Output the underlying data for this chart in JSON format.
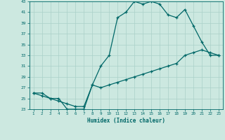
{
  "xlabel": "Humidex (Indice chaleur)",
  "ylabel": "",
  "bg_color": "#cce8e0",
  "grid_color": "#aad0c8",
  "line_color": "#006868",
  "xlim": [
    0.5,
    23.5
  ],
  "ylim": [
    23,
    43
  ],
  "xticks": [
    1,
    2,
    3,
    4,
    5,
    6,
    7,
    8,
    9,
    10,
    11,
    12,
    13,
    14,
    15,
    16,
    17,
    18,
    19,
    20,
    21,
    22,
    23
  ],
  "yticks": [
    23,
    25,
    27,
    29,
    31,
    33,
    35,
    37,
    39,
    41,
    43
  ],
  "line1_x": [
    1,
    2,
    3,
    4,
    5,
    6,
    7,
    8,
    9,
    10,
    11,
    12,
    13,
    14,
    15,
    16,
    17,
    18,
    19,
    20,
    21,
    22,
    23
  ],
  "line1_y": [
    26,
    26,
    25,
    25,
    23,
    23,
    23,
    27.5,
    31,
    33,
    40,
    41,
    43,
    42.5,
    43,
    42.5,
    40.5,
    40,
    41.5,
    38.5,
    35.5,
    33,
    33
  ],
  "line2_x": [
    1,
    2,
    3,
    4,
    5,
    6,
    7,
    8,
    9,
    10,
    11,
    12,
    13,
    14,
    15,
    16,
    17,
    18,
    19,
    20,
    21,
    22,
    23
  ],
  "line2_y": [
    26,
    25.5,
    25,
    24.5,
    24,
    23.5,
    23.5,
    27.5,
    27,
    27.5,
    28,
    28.5,
    29,
    29.5,
    30,
    30.5,
    31,
    31.5,
    33,
    33.5,
    34,
    33.5,
    33
  ]
}
